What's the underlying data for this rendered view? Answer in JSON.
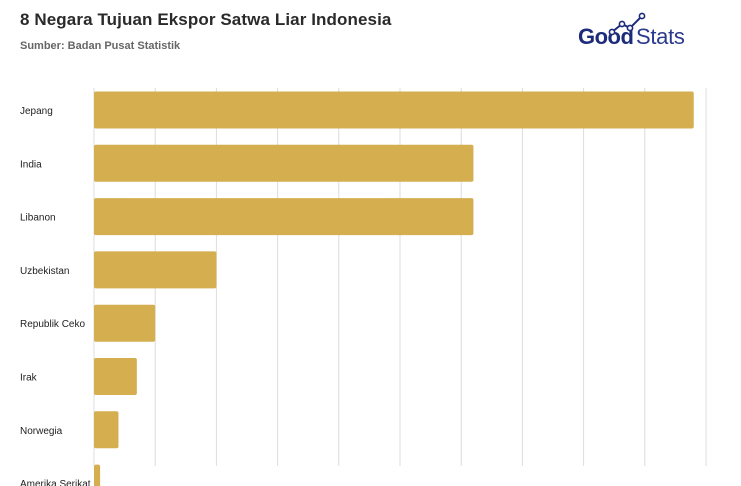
{
  "header": {
    "title": "8 Negara Tujuan Ekspor Satwa Liar Indonesia",
    "subtitle": "Sumber: Badan Pusat Statistik"
  },
  "logo": {
    "good": "Good",
    "stats": "Stats",
    "icon": "trend-line-icon"
  },
  "colors": {
    "bar": "#d4ae4f",
    "grid": "#dcdcdc",
    "brand": "#1c2b7a"
  },
  "chart_data": {
    "type": "bar",
    "orientation": "horizontal",
    "title": "8 Negara Tujuan Ekspor Satwa Liar Indonesia",
    "subtitle": "Sumber: Badan Pusat Statistik",
    "categories": [
      "Jepang",
      "India",
      "Libanon",
      "Uzbekistan",
      "Republik Ceko",
      "Irak",
      "Norwegia",
      "Amerika Serikat"
    ],
    "values": [
      98,
      62,
      62,
      20,
      10,
      7,
      4,
      1
    ],
    "xlim": [
      0,
      100
    ],
    "grid": true,
    "legend": "none"
  }
}
